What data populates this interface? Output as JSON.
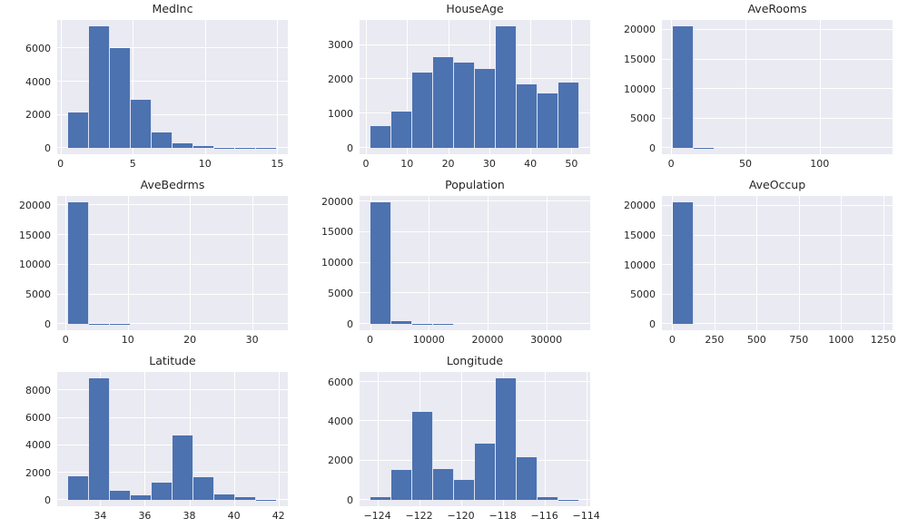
{
  "figure": {
    "background_color": "#ffffff",
    "plot_background_color": "#eaeaf2",
    "grid_color": "#ffffff",
    "bar_color": "#4c72b0",
    "text_color": "#262626",
    "grid_columns": 3,
    "grid_rows": 3,
    "style": "seaborn-darkgrid",
    "grid": true,
    "legend": "none"
  },
  "chart_data": [
    {
      "type": "bar",
      "title": "MedInc",
      "xlabel": "",
      "ylabel": "",
      "bin_start": 0.5,
      "bin_width": 1.45,
      "values": [
        2150,
        7350,
        6000,
        2900,
        950,
        300,
        100,
        40,
        15,
        10
      ],
      "xlim": [
        -0.23,
        15.73
      ],
      "ylim": [
        -368,
        7718
      ],
      "xticks": [
        0,
        5,
        10,
        15
      ],
      "xtick_labels": [
        "0",
        "5",
        "10",
        "15"
      ],
      "yticks": [
        0,
        2000,
        4000,
        6000
      ],
      "ytick_labels": [
        "0",
        "2000",
        "4000",
        "6000"
      ]
    },
    {
      "type": "bar",
      "title": "HouseAge",
      "xlabel": "",
      "ylabel": "",
      "bin_start": 1.0,
      "bin_width": 5.1,
      "values": [
        650,
        1050,
        2200,
        2650,
        2500,
        2300,
        3550,
        1850,
        1600,
        1900
      ],
      "xlim": [
        -1.55,
        54.55
      ],
      "ylim": [
        -178,
        3728
      ],
      "xticks": [
        0,
        10,
        20,
        30,
        40,
        50
      ],
      "xtick_labels": [
        "0",
        "10",
        "20",
        "30",
        "40",
        "50"
      ],
      "yticks": [
        0,
        1000,
        2000,
        3000
      ],
      "ytick_labels": [
        "0",
        "1000",
        "2000",
        "3000"
      ]
    },
    {
      "type": "bar",
      "title": "AveRooms",
      "xlabel": "",
      "ylabel": "",
      "bin_start": 0.85,
      "bin_width": 14.11,
      "values": [
        20640,
        30,
        10,
        5,
        2,
        1,
        1,
        0,
        0,
        1
      ],
      "xlim": [
        -6.2,
        149.0
      ],
      "ylim": [
        -1032,
        21672
      ],
      "xticks": [
        0,
        50,
        100
      ],
      "xtick_labels": [
        "0",
        "50",
        "100"
      ],
      "yticks": [
        0,
        5000,
        10000,
        15000,
        20000
      ],
      "ytick_labels": [
        "0",
        "5000",
        "10000",
        "15000",
        "20000"
      ]
    },
    {
      "type": "bar",
      "title": "AveBedrms",
      "xlabel": "",
      "ylabel": "",
      "bin_start": 0.33,
      "bin_width": 3.37,
      "values": [
        20550,
        60,
        20,
        5,
        2,
        1,
        0,
        0,
        0,
        1
      ],
      "xlim": [
        -1.36,
        35.76
      ],
      "ylim": [
        -1028,
        21578
      ],
      "xticks": [
        0,
        10,
        20,
        30
      ],
      "xtick_labels": [
        "0",
        "10",
        "20",
        "30"
      ],
      "yticks": [
        0,
        5000,
        10000,
        15000,
        20000
      ],
      "ytick_labels": [
        "0",
        "5000",
        "10000",
        "15000",
        "20000"
      ]
    },
    {
      "type": "bar",
      "title": "Population",
      "xlabel": "",
      "ylabel": "",
      "bin_start": 3,
      "bin_width": 3568,
      "values": [
        19900,
        500,
        70,
        20,
        5,
        2,
        1,
        1,
        0,
        1
      ],
      "xlim": [
        -1781,
        37467
      ],
      "ylim": [
        -995,
        20895
      ],
      "xticks": [
        0,
        10000,
        20000,
        30000
      ],
      "xtick_labels": [
        "0",
        "10000",
        "20000",
        "30000"
      ],
      "yticks": [
        0,
        5000,
        10000,
        15000,
        20000
      ],
      "ytick_labels": [
        "0",
        "5000",
        "10000",
        "15000",
        "20000"
      ]
    },
    {
      "type": "bar",
      "title": "AveOccup",
      "xlabel": "",
      "ylabel": "",
      "bin_start": 0.69,
      "bin_width": 124.26,
      "values": [
        20640,
        5,
        2,
        1,
        0,
        0,
        0,
        0,
        0,
        1
      ],
      "xlim": [
        -61.4,
        1305.4
      ],
      "ylim": [
        -1032,
        21672
      ],
      "xticks": [
        0,
        250,
        500,
        750,
        1000,
        1250
      ],
      "xtick_labels": [
        "0",
        "250",
        "500",
        "750",
        "1000",
        "1250"
      ],
      "yticks": [
        0,
        5000,
        10000,
        15000,
        20000
      ],
      "ytick_labels": [
        "0",
        "5000",
        "10000",
        "15000",
        "20000"
      ]
    },
    {
      "type": "bar",
      "title": "Latitude",
      "xlabel": "",
      "ylabel": "",
      "bin_start": 32.54,
      "bin_width": 0.941,
      "values": [
        1750,
        8900,
        650,
        370,
        1250,
        4700,
        1700,
        400,
        250,
        40
      ],
      "xlim": [
        32.07,
        42.42
      ],
      "ylim": [
        -445,
        9345
      ],
      "xticks": [
        34,
        36,
        38,
        40,
        42
      ],
      "xtick_labels": [
        "34",
        "36",
        "38",
        "40",
        "42"
      ],
      "yticks": [
        0,
        2000,
        4000,
        6000,
        8000
      ],
      "ytick_labels": [
        "0",
        "2000",
        "4000",
        "6000",
        "8000"
      ]
    },
    {
      "type": "bar",
      "title": "Longitude",
      "xlabel": "",
      "ylabel": "",
      "bin_start": -124.35,
      "bin_width": 1.004,
      "values": [
        130,
        1550,
        4500,
        1600,
        1050,
        2850,
        6200,
        2200,
        130,
        20
      ],
      "xlim": [
        -124.85,
        -113.81
      ],
      "ylim": [
        -310,
        6510
      ],
      "xticks": [
        -124,
        -122,
        -120,
        -118,
        -116,
        -114
      ],
      "xtick_labels": [
        "−124",
        "−122",
        "−120",
        "−118",
        "−116",
        "−114"
      ],
      "yticks": [
        0,
        2000,
        4000,
        6000
      ],
      "ytick_labels": [
        "0",
        "2000",
        "4000",
        "6000"
      ]
    }
  ]
}
